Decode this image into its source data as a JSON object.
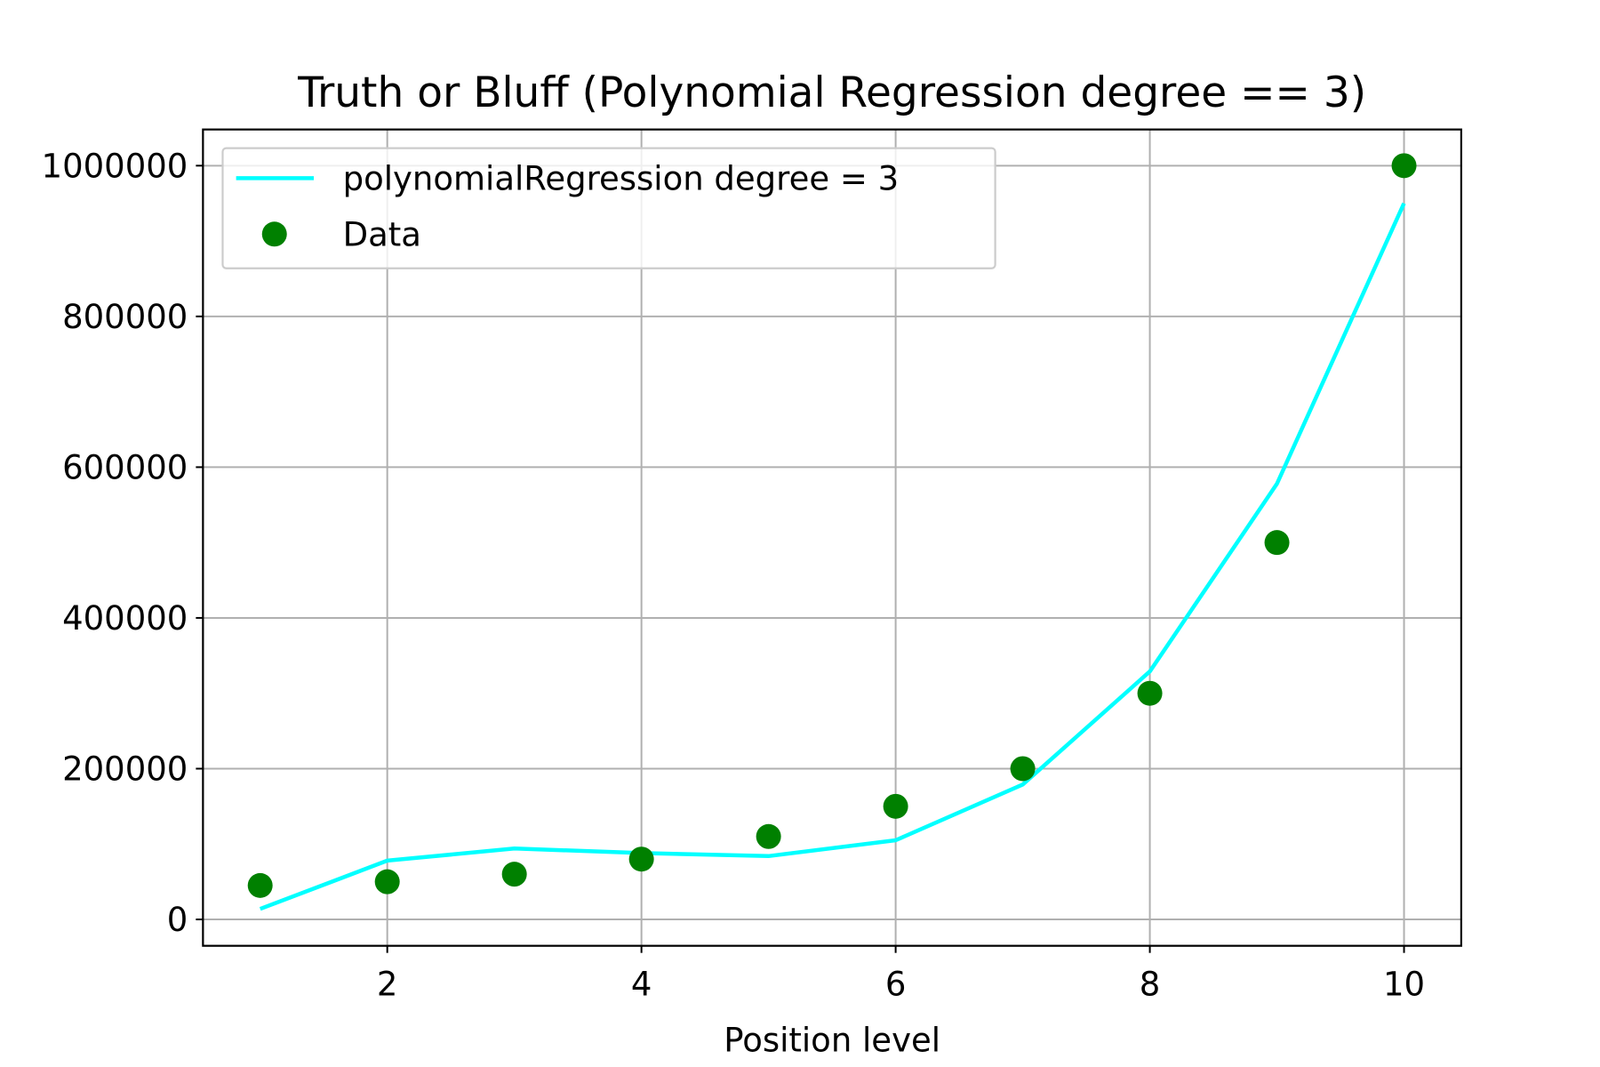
{
  "chart_data": {
    "type": "line+scatter",
    "title": "Truth or Bluff (Polynomial Regression degree == 3)",
    "xlabel": "Position level",
    "ylabel": "",
    "xlim": [
      0.55,
      10.45
    ],
    "ylim": [
      -35000,
      1048000
    ],
    "xticks": [
      2,
      4,
      6,
      8,
      10
    ],
    "xtick_labels": [
      "2",
      "4",
      "6",
      "8",
      "10"
    ],
    "yticks": [
      0,
      200000,
      400000,
      600000,
      800000,
      1000000
    ],
    "ytick_labels": [
      "0",
      "200000",
      "400000",
      "600000",
      "800000",
      "1000000"
    ],
    "grid": true,
    "legend_position": "top-left",
    "series": [
      {
        "name": "polynomialRegression degree = 3",
        "kind": "line",
        "color": "#00ffff",
        "x": [
          1,
          2,
          3,
          4,
          5,
          6,
          7,
          8,
          9,
          10
        ],
        "y": [
          14000,
          78000,
          94000,
          88000,
          84000,
          105000,
          179000,
          329000,
          578000,
          950000
        ]
      },
      {
        "name": "Data",
        "kind": "scatter",
        "color": "#008000",
        "x": [
          1,
          2,
          3,
          4,
          5,
          6,
          7,
          8,
          9,
          10
        ],
        "y": [
          45000,
          50000,
          60000,
          80000,
          110000,
          150000,
          200000,
          300000,
          500000,
          1000000
        ]
      }
    ]
  }
}
